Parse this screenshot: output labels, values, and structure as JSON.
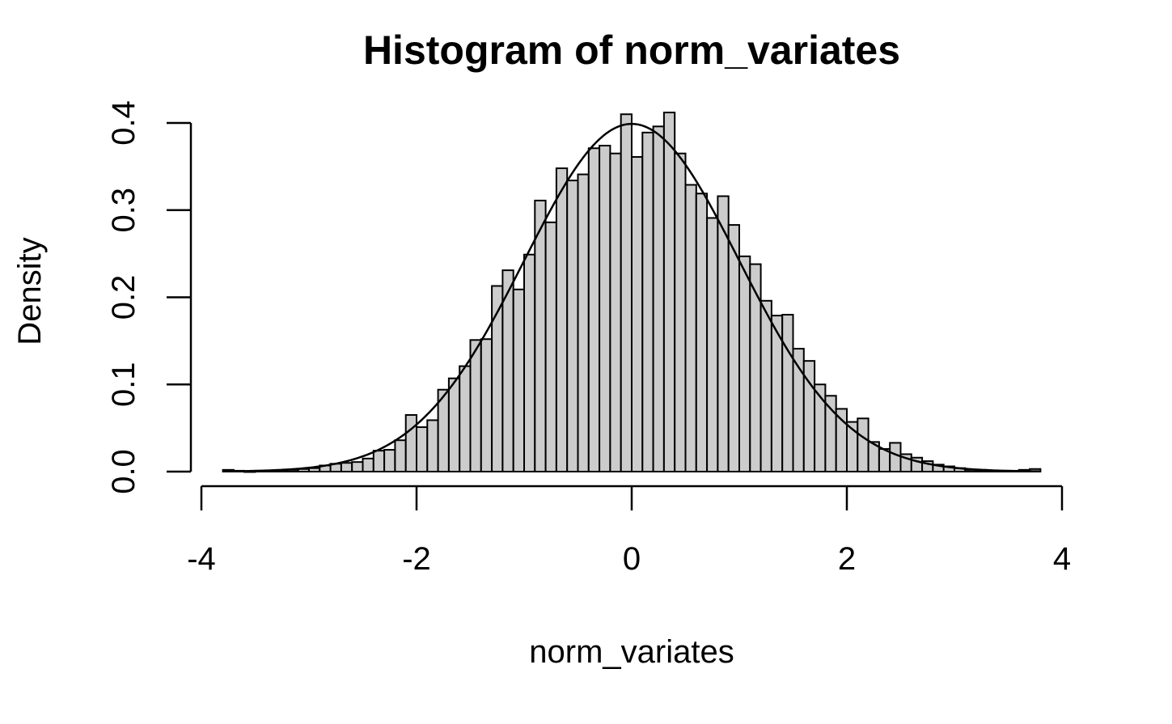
{
  "chart_data": {
    "type": "histogram",
    "title": "Histogram of norm_variates",
    "xlabel": "norm_variates",
    "ylabel": "Density",
    "xlim": [
      -4,
      4
    ],
    "ylim": [
      0,
      0.4
    ],
    "x_ticks": [
      -4,
      -2,
      0,
      2,
      4
    ],
    "x_tick_labels": [
      "-4",
      "-2",
      "0",
      "2",
      "4"
    ],
    "y_ticks": [
      0,
      0.1,
      0.2,
      0.3,
      0.4
    ],
    "y_tick_labels": [
      "0.0",
      "0.1",
      "0.2",
      "0.3",
      "0.4"
    ],
    "bar_color": "#cccccc",
    "bar_border_color": "#000000",
    "curve_color": "#000000",
    "curve": "normal density, mean 0, sd 1",
    "bin_width": 0.1,
    "bin_start": -3.8,
    "densities": [
      0.002,
      0.001,
      0.0,
      0.001,
      0.001,
      0.001,
      0.002,
      0.003,
      0.004,
      0.007,
      0.009,
      0.01,
      0.011,
      0.015,
      0.024,
      0.025,
      0.036,
      0.065,
      0.051,
      0.059,
      0.094,
      0.107,
      0.121,
      0.151,
      0.152,
      0.213,
      0.231,
      0.209,
      0.249,
      0.311,
      0.286,
      0.348,
      0.334,
      0.341,
      0.371,
      0.374,
      0.365,
      0.41,
      0.361,
      0.389,
      0.396,
      0.412,
      0.365,
      0.329,
      0.319,
      0.291,
      0.316,
      0.283,
      0.247,
      0.238,
      0.196,
      0.179,
      0.18,
      0.141,
      0.127,
      0.1,
      0.087,
      0.072,
      0.057,
      0.061,
      0.034,
      0.026,
      0.033,
      0.02,
      0.016,
      0.012,
      0.008,
      0.006,
      0.004,
      0.002,
      0.002,
      0.001,
      0.001,
      0.001,
      0.002,
      0.003
    ]
  }
}
